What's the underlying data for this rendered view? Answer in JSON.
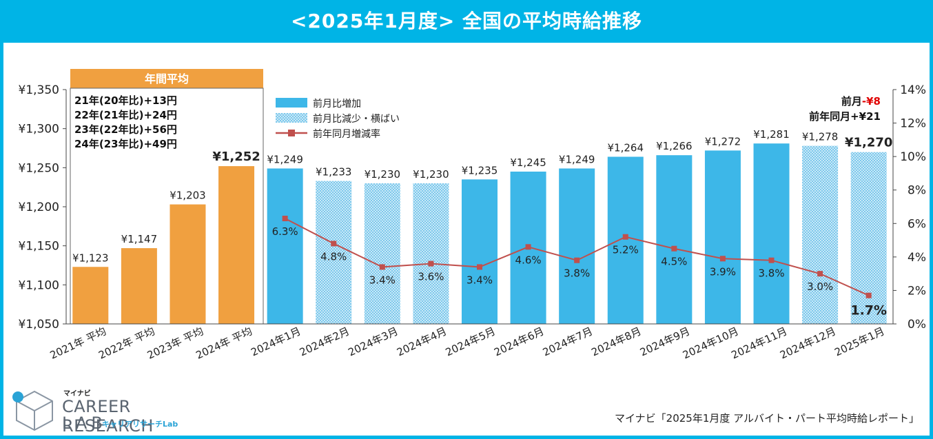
{
  "header": {
    "title": "<2025年1月度>  全国の平均時給推移"
  },
  "annual_box": {
    "label": "年間平均",
    "notes": [
      "21年(20年比)+13円",
      "22年(21年比)+24円",
      "23年(22年比)+56円",
      "24年(23年比)+49円"
    ]
  },
  "summary": {
    "prev_month_label": "前月",
    "prev_month_value": "-¥8",
    "prev_year_label": "前年同月",
    "prev_year_value": "+¥21"
  },
  "footer": {
    "source": "マイナビ「2025年1月度 アルバイト・パート平均時給レポート」",
    "logo_small": "マイナビ",
    "logo_main": "CAREER RESEARCH",
    "logo_lab": "LAB",
    "logo_jp": "キャリアリサーチLab"
  },
  "colors": {
    "header_bg": "#00b4e6",
    "annual_bar": "#f0a040",
    "increase_bar": "#3db7e8",
    "decrease_bar": "#a8dcf3",
    "rate_line": "#c0504d",
    "highlight_red": "#e00000"
  },
  "chart_data": {
    "type": "bar",
    "title": "<2025年1月度>  全国の平均時給推移",
    "categories": [
      "2021年 平均",
      "2022年 平均",
      "2023年 平均",
      "2024年 平均",
      "2024年1月",
      "2024年2月",
      "2024年3月",
      "2024年4月",
      "2024年5月",
      "2024年6月",
      "2024年7月",
      "2024年8月",
      "2024年9月",
      "2024年10月",
      "2024年11月",
      "2024年12月",
      "2025年1月"
    ],
    "wage_values": [
      1123,
      1147,
      1203,
      1252,
      1249,
      1233,
      1230,
      1230,
      1235,
      1245,
      1249,
      1264,
      1266,
      1272,
      1281,
      1278,
      1270
    ],
    "wage_labels": [
      "¥1,123",
      "¥1,147",
      "¥1,203",
      "¥1,252",
      "¥1,249",
      "¥1,233",
      "¥1,230",
      "¥1,230",
      "¥1,235",
      "¥1,245",
      "¥1,249",
      "¥1,264",
      "¥1,266",
      "¥1,272",
      "¥1,281",
      "¥1,278",
      "¥1,270"
    ],
    "bar_kind": [
      "annual",
      "annual",
      "annual",
      "annual",
      "increase",
      "decrease",
      "decrease",
      "decrease",
      "increase",
      "increase",
      "increase",
      "increase",
      "increase",
      "increase",
      "increase",
      "decrease",
      "decrease"
    ],
    "rate_values": [
      6.3,
      4.8,
      3.4,
      3.6,
      3.4,
      4.6,
      3.8,
      5.2,
      4.5,
      3.9,
      3.8,
      3.0,
      1.7
    ],
    "rate_labels": [
      "6.3%",
      "4.8%",
      "3.4%",
      "3.6%",
      "3.4%",
      "4.6%",
      "3.8%",
      "5.2%",
      "4.5%",
      "3.9%",
      "3.8%",
      "3.0%",
      "1.7%"
    ],
    "rate_start_index": 4,
    "ylim": [
      1050,
      1350
    ],
    "yticks": [
      1050,
      1100,
      1150,
      1200,
      1250,
      1300,
      1350
    ],
    "ytick_labels": [
      "¥1,050",
      "¥1,100",
      "¥1,150",
      "¥1,200",
      "¥1,250",
      "¥1,300",
      "¥1,350"
    ],
    "y2lim": [
      0,
      14
    ],
    "y2ticks": [
      0,
      2,
      4,
      6,
      8,
      10,
      12,
      14
    ],
    "y2tick_labels": [
      "0%",
      "2%",
      "4%",
      "6%",
      "8%",
      "10%",
      "12%",
      "14%"
    ],
    "legend": [
      "前月比増加",
      "前月比減少・横ばい",
      "前年同月増減率"
    ],
    "legend_position": "top-left"
  }
}
